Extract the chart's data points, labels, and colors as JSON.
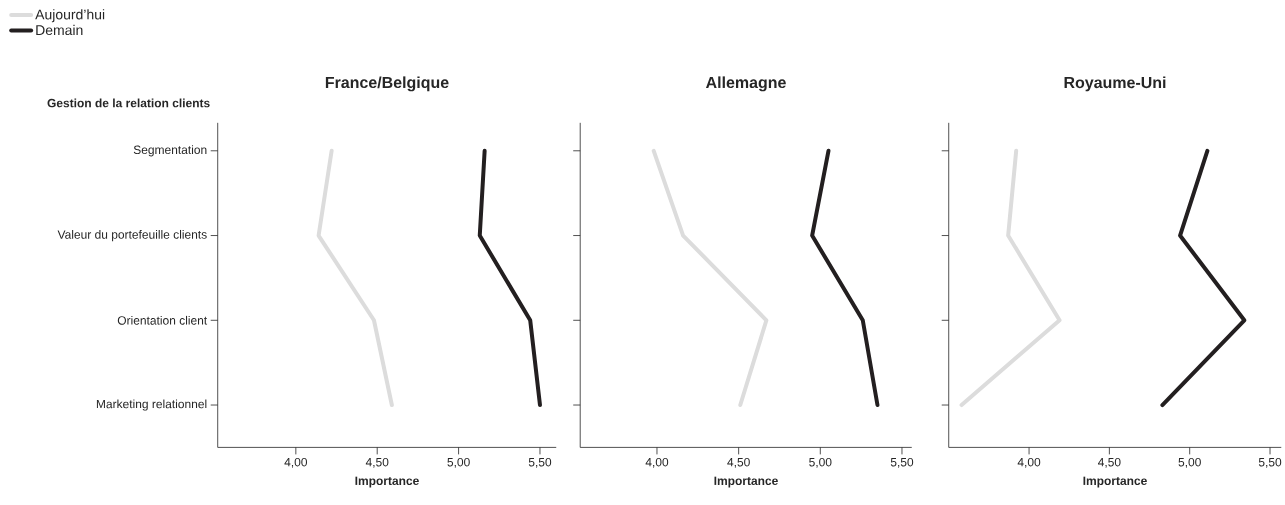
{
  "chart_data": [
    {
      "type": "line",
      "title": "France/Belgique",
      "ylabel": "Gestion de la relation clients",
      "xlabel": "Importance",
      "categories": [
        "Segmentation",
        "Valeur du portefeuille clients",
        "Orientation client",
        "Marketing relationnel"
      ],
      "xlim": [
        3.52,
        5.6
      ],
      "xticks": [
        {
          "value": 4.0,
          "label": "4,00"
        },
        {
          "value": 4.5,
          "label": "4,50"
        },
        {
          "value": 5.0,
          "label": "5,00"
        },
        {
          "value": 5.5,
          "label": "5,50"
        }
      ],
      "orientation": "horizontal",
      "grid": false,
      "marker": "none",
      "line_style": "solid",
      "legend": "top left",
      "series": [
        {
          "name": "Aujourd’hui",
          "color": "#dcdcdc",
          "values": [
            4.22,
            4.14,
            4.48,
            4.59
          ]
        },
        {
          "name": "Demain",
          "color": "#231f20",
          "values": [
            5.16,
            5.13,
            5.44,
            5.5
          ]
        }
      ]
    },
    {
      "type": "line",
      "title": "Allemagne",
      "xlabel": "Importance",
      "tick_labels": "x",
      "categories": [
        null,
        null,
        null,
        null
      ],
      "xlim": [
        3.53,
        5.56
      ],
      "xticks": [
        {
          "value": 4.0,
          "label": "4,00"
        },
        {
          "value": 4.5,
          "label": "4,50"
        },
        {
          "value": 5.0,
          "label": "5,00"
        },
        {
          "value": 5.5,
          "label": "5,50"
        }
      ],
      "orientation": "horizontal",
      "grid": false,
      "marker": "none",
      "line_style": "solid",
      "series": [
        {
          "color": "#dcdcdc",
          "values": [
            3.98,
            4.16,
            4.67,
            4.51
          ]
        },
        {
          "color": "#231f20",
          "values": [
            5.05,
            4.95,
            5.26,
            5.35
          ]
        }
      ]
    },
    {
      "type": "line",
      "title": "Royaume-Uni",
      "xlabel": "Importance",
      "tick_labels": "x",
      "categories": [
        null,
        null,
        null,
        null
      ],
      "xlim": [
        3.5,
        5.57
      ],
      "xticks": [
        {
          "value": 4.0,
          "label": "4,00"
        },
        {
          "value": 4.5,
          "label": "4,50"
        },
        {
          "value": 5.0,
          "label": "5,00"
        },
        {
          "value": 5.5,
          "label": "5,50"
        }
      ],
      "orientation": "horizontal",
      "grid": false,
      "marker": "none",
      "line_style": "solid",
      "series": [
        {
          "color": "#dcdcdc",
          "values": [
            3.92,
            3.87,
            4.19,
            3.58
          ]
        },
        {
          "color": "#231f20",
          "values": [
            5.11,
            4.94,
            5.34,
            4.83
          ]
        }
      ]
    }
  ]
}
